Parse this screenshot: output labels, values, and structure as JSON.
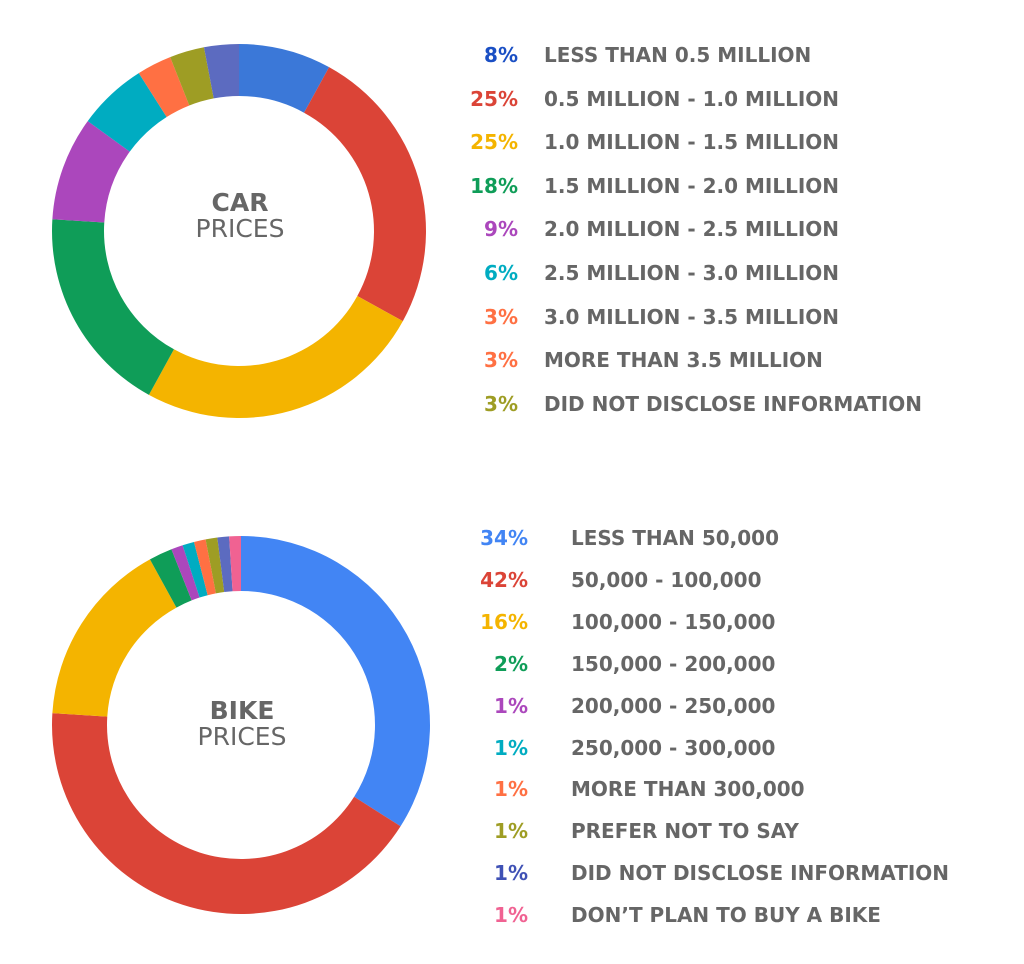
{
  "chart_data": [
    {
      "type": "pie",
      "donut": true,
      "center_label": {
        "line1": "CAR",
        "line2": "PRICES"
      },
      "legend_placement": "right",
      "slices": [
        {
          "pct_label": "8%",
          "label": "LESS THAN 0.5 MILLION",
          "value": 8,
          "color": "#3B78D8"
        },
        {
          "pct_label": "25%",
          "label": "0.5 MILLION - 1.0 MILLION",
          "value": 25,
          "color": "#DB4437"
        },
        {
          "pct_label": "25%",
          "label": "1.0 MILLION - 1.5 MILLION",
          "value": 25,
          "color": "#F4B400"
        },
        {
          "pct_label": "18%",
          "label": "1.5 MILLION - 2.0 MILLION",
          "value": 18,
          "color": "#0F9D58"
        },
        {
          "pct_label": "9%",
          "label": "2.0 MILLION - 2.5 MILLION",
          "value": 9,
          "color": "#AB47BC"
        },
        {
          "pct_label": "6%",
          "label": "2.5 MILLION - 3.0 MILLION",
          "value": 6,
          "color": "#00ACC1"
        },
        {
          "pct_label": "3%",
          "label": "3.0 MILLION - 3.5 MILLION",
          "value": 3,
          "color": "#FF7043"
        },
        {
          "pct_label": "3%",
          "label": "MORE THAN 3.5 MILLION",
          "value": 3,
          "color": "#9E9D24"
        },
        {
          "pct_label": "3%",
          "label": "DID NOT DISCLOSE INFORMATION",
          "value": 3,
          "color": "#5C6BC0"
        }
      ],
      "legend_pct_colors": [
        "#1A4FC4",
        "#DB4437",
        "#F4B400",
        "#0F9D58",
        "#AB47BC",
        "#00ACC1",
        "#FF7043",
        "#FF7043",
        "#9E9D24"
      ]
    },
    {
      "type": "pie",
      "donut": true,
      "center_label": {
        "line1": "BIKE",
        "line2": "PRICES"
      },
      "legend_placement": "right",
      "slices": [
        {
          "pct_label": "34%",
          "label": "LESS THAN 50,000",
          "value": 34,
          "color": "#4285F4"
        },
        {
          "pct_label": "42%",
          "label": "50,000 - 100,000",
          "value": 42,
          "color": "#DB4437"
        },
        {
          "pct_label": "16%",
          "label": "100,000 - 150,000",
          "value": 16,
          "color": "#F4B400"
        },
        {
          "pct_label": "2%",
          "label": "150,000 - 200,000",
          "value": 2,
          "color": "#0F9D58"
        },
        {
          "pct_label": "1%",
          "label": "200,000 - 250,000",
          "value": 1,
          "color": "#AB47BC"
        },
        {
          "pct_label": "1%",
          "label": "250,000 - 300,000",
          "value": 1,
          "color": "#00ACC1"
        },
        {
          "pct_label": "1%",
          "label": "MORE THAN 300,000",
          "value": 1,
          "color": "#FF7043"
        },
        {
          "pct_label": "1%",
          "label": "PREFER NOT TO SAY",
          "value": 1,
          "color": "#9E9D24"
        },
        {
          "pct_label": "1%",
          "label": "DID NOT DISCLOSE INFORMATION",
          "value": 1,
          "color": "#5C6BC0"
        },
        {
          "pct_label": "1%",
          "label": "DON’T PLAN TO BUY A BIKE",
          "value": 1,
          "color": "#F06292"
        }
      ],
      "legend_pct_colors": [
        "#4285F4",
        "#DB4437",
        "#F4B400",
        "#0F9D58",
        "#AB47BC",
        "#00ACC1",
        "#FF7043",
        "#9E9D24",
        "#3F51B5",
        "#F06292"
      ]
    }
  ]
}
